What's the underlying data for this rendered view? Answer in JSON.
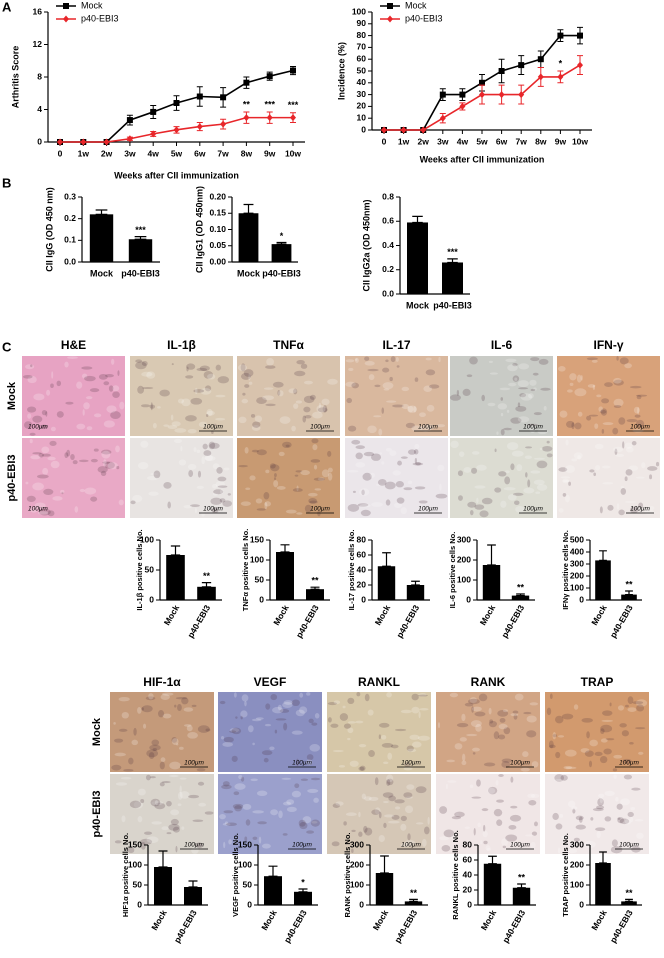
{
  "panel_labels": [
    "A",
    "B",
    "C"
  ],
  "histology": [
    {
      "stains": [
        "H&E",
        "IL-1β",
        "TNFα",
        "IL-17",
        "IL-6",
        "IFN-γ"
      ],
      "rows": [
        "Mock",
        "p40-EBI3"
      ]
    },
    {
      "stains": [
        "HIF-1α",
        "VEGF",
        "RANKL",
        "RANK",
        "TRAP"
      ],
      "rows": [
        "Mock",
        "p40-EBI3"
      ]
    }
  ],
  "scale_bar": "100μm",
  "chart_data": [
    {
      "type": "line",
      "ylabel": "Arthritis Score",
      "xlabel": "Weeks after CII immunization",
      "categories": [
        "0",
        "1w",
        "2w",
        "3w",
        "4w",
        "5w",
        "6w",
        "7w",
        "8w",
        "9w",
        "10w"
      ],
      "series": [
        {
          "name": "Mock",
          "color": "#000000",
          "marker": "square",
          "values": [
            0,
            0,
            0,
            2.7,
            3.7,
            4.8,
            5.6,
            5.5,
            7.3,
            8.1,
            8.8
          ],
          "errors": [
            0,
            0,
            0,
            0.6,
            0.8,
            0.9,
            1.2,
            1.2,
            0.7,
            0.5,
            0.5
          ]
        },
        {
          "name": "p40-EBI3",
          "color": "#e8262a",
          "marker": "diamond",
          "values": [
            0,
            0,
            0,
            0.4,
            1.0,
            1.5,
            1.9,
            2.2,
            3.0,
            3.0,
            3.0
          ],
          "errors": [
            0,
            0,
            0,
            0.2,
            0.3,
            0.4,
            0.5,
            0.6,
            0.7,
            0.7,
            0.6
          ]
        }
      ],
      "significance": [
        null,
        null,
        null,
        null,
        null,
        null,
        null,
        null,
        "**",
        "***",
        "***"
      ],
      "ylim": [
        0,
        16
      ],
      "yticks": [
        0,
        4,
        8,
        12,
        16
      ],
      "legend": "upper left"
    },
    {
      "type": "line",
      "ylabel": "Incidence (%)",
      "xlabel": "Weeks after CII immunization",
      "categories": [
        "0",
        "1w",
        "2w",
        "3w",
        "4w",
        "5w",
        "6w",
        "7w",
        "8w",
        "9w",
        "10w"
      ],
      "series": [
        {
          "name": "Mock",
          "color": "#000000",
          "marker": "square",
          "values": [
            0,
            0,
            0,
            30,
            30,
            40,
            50,
            55,
            60,
            80,
            80
          ],
          "errors": [
            0,
            0,
            0,
            5,
            5,
            7,
            10,
            8,
            7,
            5,
            7
          ]
        },
        {
          "name": "p40-EBI3",
          "color": "#e8262a",
          "marker": "diamond",
          "values": [
            0,
            0,
            0,
            10,
            20,
            30,
            30,
            30,
            45,
            45,
            55
          ],
          "errors": [
            0,
            0,
            0,
            4,
            3,
            8,
            8,
            8,
            8,
            5,
            8
          ]
        }
      ],
      "significance": [
        null,
        null,
        null,
        null,
        null,
        null,
        null,
        null,
        null,
        "*",
        null
      ],
      "ylim": [
        0,
        100
      ],
      "yticks": [
        0,
        10,
        20,
        30,
        40,
        50,
        60,
        70,
        80,
        90,
        100
      ],
      "legend": "upper left"
    },
    {
      "type": "bar",
      "ylabel": "CII IgG (OD 450 nm)",
      "categories": [
        "Mock",
        "p40-EBI3"
      ],
      "values": [
        0.22,
        0.105
      ],
      "errors": [
        0.02,
        0.012
      ],
      "significance": [
        null,
        "***"
      ],
      "color": "#000000",
      "ylim": [
        0,
        0.3
      ],
      "yticks": [
        {
          "value": 0,
          "label": "0.0"
        },
        0.1,
        0.2,
        0.3
      ]
    },
    {
      "type": "bar",
      "ylabel": "CII IgG1 (OD 450nm)",
      "categories": [
        "Mock",
        "p40-EBI3"
      ],
      "values": [
        0.15,
        0.055
      ],
      "errors": [
        0.027,
        0.005
      ],
      "significance": [
        null,
        "*"
      ],
      "color": "#000000",
      "ylim": [
        0,
        0.2
      ],
      "yticks": [
        {
          "value": 0,
          "label": "0.00"
        },
        0.05,
        {
          "value": 0.1,
          "label": "0.10"
        },
        0.15,
        {
          "value": 0.2,
          "label": "0.20"
        }
      ]
    },
    {
      "type": "bar",
      "ylabel": "CII IgG2a (OD 450nm)",
      "categories": [
        "Mock",
        "p40-EBI3"
      ],
      "values": [
        0.59,
        0.26
      ],
      "errors": [
        0.05,
        0.03
      ],
      "significance": [
        null,
        "***"
      ],
      "color": "#000000",
      "ylim": [
        0,
        0.8
      ],
      "yticks": [
        {
          "value": 0,
          "label": "0.0"
        },
        0.2,
        0.4,
        0.6,
        0.8
      ]
    },
    {
      "type": "bar",
      "ylabel": "IL-1β positive cells No.",
      "categories": [
        "Mock",
        "p40-EBI3"
      ],
      "values": [
        75,
        22
      ],
      "errors": [
        15,
        7
      ],
      "significance": [
        null,
        "**"
      ],
      "color": "#000000",
      "ylim": [
        0,
        100
      ],
      "yticks": [
        0,
        50,
        100
      ]
    },
    {
      "type": "bar",
      "ylabel": "TNFα positive cells No.",
      "categories": [
        "Mock",
        "p40-EBI3"
      ],
      "values": [
        120,
        27
      ],
      "errors": [
        18,
        5
      ],
      "significance": [
        null,
        "**"
      ],
      "color": "#000000",
      "ylim": [
        0,
        150
      ],
      "yticks": [
        0,
        50,
        100,
        150
      ]
    },
    {
      "type": "bar",
      "ylabel": "IL-17 positive cells No.",
      "categories": [
        "Mock",
        "p40-EBI3"
      ],
      "values": [
        45,
        20
      ],
      "errors": [
        18,
        5
      ],
      "color": "#000000",
      "ylim": [
        0,
        80
      ],
      "yticks": [
        0,
        20,
        40,
        60,
        80
      ]
    },
    {
      "type": "bar",
      "ylabel": "IL-6 positive cells No.",
      "categories": [
        "Mock",
        "p40-EBI3"
      ],
      "values": [
        175,
        22
      ],
      "errors": [
        100,
        8
      ],
      "significance": [
        null,
        "**"
      ],
      "color": "#000000",
      "ylim": [
        0,
        300
      ],
      "yticks": [
        0,
        100,
        200,
        300
      ]
    },
    {
      "type": "bar",
      "ylabel": "IFNγ positive cells No.",
      "categories": [
        "Mock",
        "p40-EBI3"
      ],
      "values": [
        330,
        45
      ],
      "errors": [
        80,
        30
      ],
      "significance": [
        null,
        "**"
      ],
      "color": "#000000",
      "ylim": [
        0,
        500
      ],
      "yticks": [
        0,
        100,
        200,
        300,
        400,
        500
      ]
    },
    {
      "type": "bar",
      "ylabel": "HIF1α positive cells No.",
      "categories": [
        "Mock",
        "p40-EBI3"
      ],
      "values": [
        95,
        45
      ],
      "errors": [
        40,
        15
      ],
      "color": "#000000",
      "ylim": [
        0,
        150
      ],
      "yticks": [
        0,
        50,
        100,
        150
      ]
    },
    {
      "type": "bar",
      "ylabel": "VEGF positive cells No.",
      "categories": [
        "Mock",
        "p40-EBI3"
      ],
      "values": [
        72,
        33
      ],
      "errors": [
        25,
        7
      ],
      "significance": [
        null,
        "*"
      ],
      "color": "#000000",
      "ylim": [
        0,
        150
      ],
      "yticks": [
        0,
        50,
        100,
        150
      ]
    },
    {
      "type": "bar",
      "ylabel": "RANK positive cells No.",
      "categories": [
        "Mock",
        "p40-EBI3"
      ],
      "values": [
        160,
        18
      ],
      "errors": [
        85,
        10
      ],
      "significance": [
        null,
        "**"
      ],
      "color": "#000000",
      "ylim": [
        0,
        300
      ],
      "yticks": [
        0,
        100,
        200,
        300
      ]
    },
    {
      "type": "bar",
      "ylabel": "RANKL positive cells No.",
      "categories": [
        "Mock",
        "p40-EBI3"
      ],
      "values": [
        55,
        23
      ],
      "errors": [
        10,
        5
      ],
      "significance": [
        null,
        "**"
      ],
      "color": "#000000",
      "ylim": [
        0,
        80
      ],
      "yticks": [
        0,
        20,
        40,
        60,
        80
      ]
    },
    {
      "type": "bar",
      "ylabel": "TRAP positive cells No.",
      "categories": [
        "Mock",
        "p40-EBI3"
      ],
      "values": [
        210,
        18
      ],
      "errors": [
        55,
        10
      ],
      "significance": [
        null,
        "**"
      ],
      "color": "#000000",
      "ylim": [
        0,
        300
      ],
      "yticks": [
        0,
        100,
        200,
        300
      ]
    }
  ]
}
